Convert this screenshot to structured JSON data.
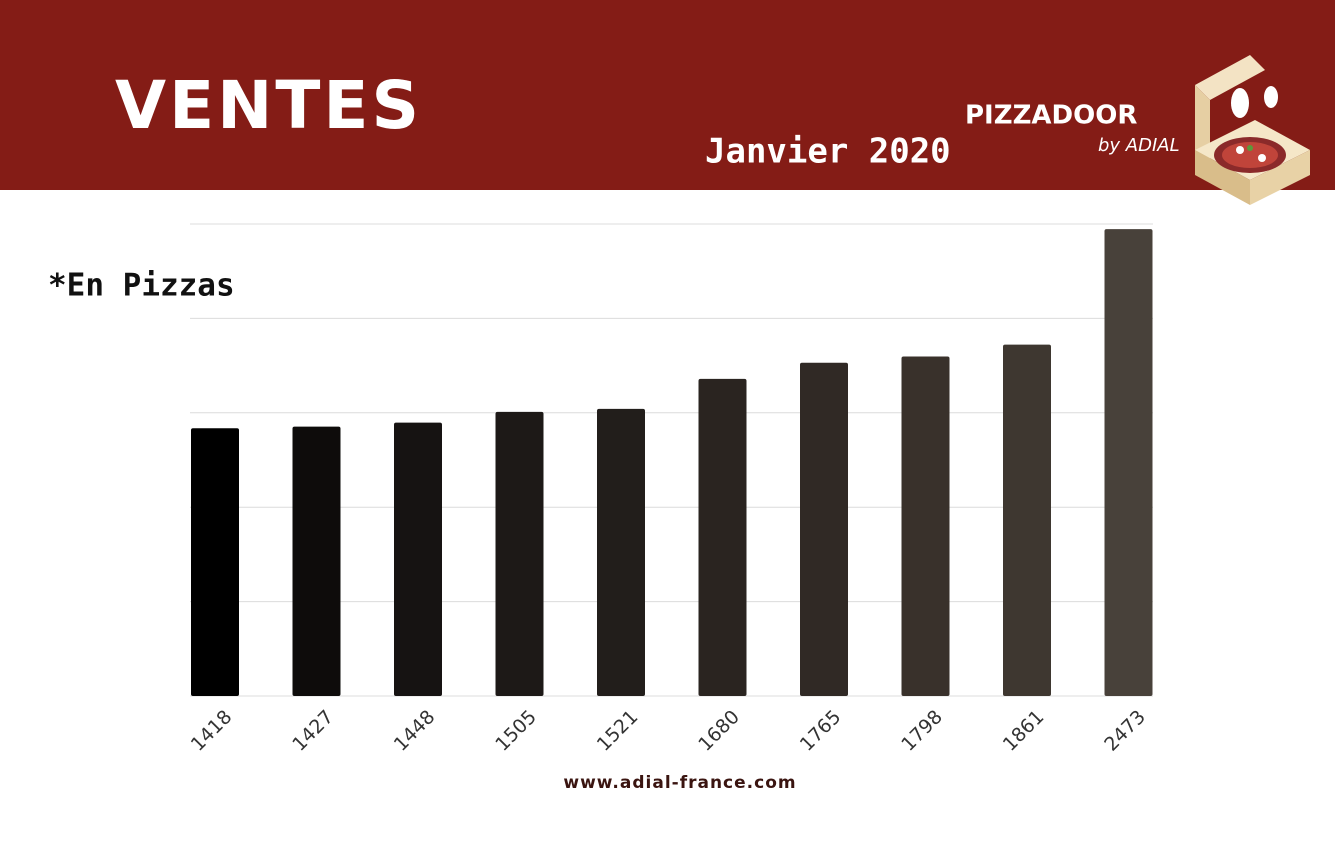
{
  "header": {
    "title": "VENTES",
    "subtitle": "Janvier 2020",
    "brand": "PIZZADOOR",
    "brand_sub": "by ADIAL"
  },
  "chart_data": {
    "type": "bar",
    "note": "*En Pizzas",
    "categories": [
      "1418",
      "1427",
      "1448",
      "1505",
      "1521",
      "1680",
      "1765",
      "1798",
      "1861",
      "2473"
    ],
    "values": [
      1418,
      1427,
      1448,
      1505,
      1521,
      1680,
      1765,
      1798,
      1861,
      2473
    ],
    "colors": [
      "#000000",
      "#0e0c0b",
      "#161312",
      "#1d1917",
      "#221e1b",
      "#2a2420",
      "#302925",
      "#39312b",
      "#3e3730",
      "#48413a"
    ],
    "ylim": [
      0,
      2500
    ],
    "yticks": [
      0,
      500,
      1000,
      1500,
      2000,
      2500
    ],
    "grid": true
  },
  "footer": "www.adial-france.com"
}
